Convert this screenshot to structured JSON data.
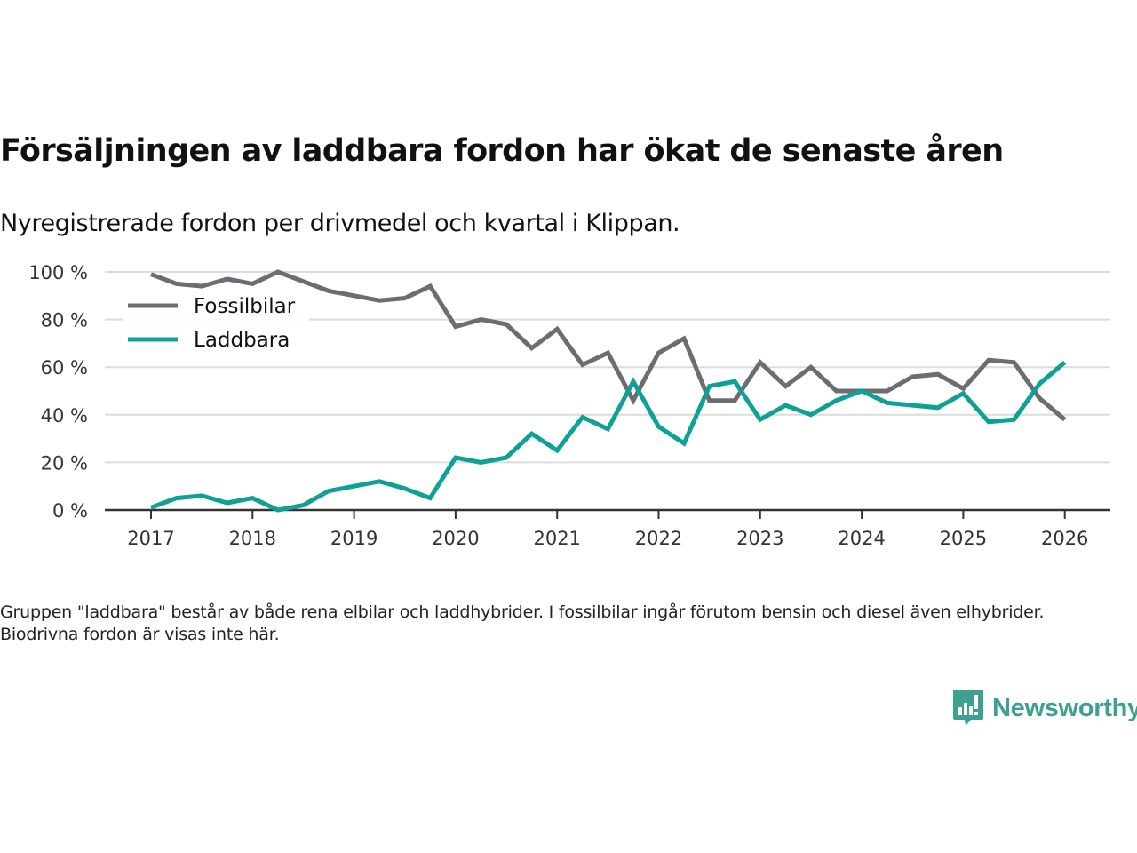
{
  "header": {
    "title": "Försäljningen av laddbara fordon har ökat de senaste åren",
    "subtitle": "Nyregistrerade fordon per drivmedel och kvartal i Klippan."
  },
  "footer": {
    "note": "Gruppen \"laddbara\" består av både rena elbilar och laddhybrider. I fossilbilar ingår förutom bensin och diesel även elhybrider. Biodrivna fordon är visas inte här.",
    "brand": "Newsworthy",
    "brand_icon": "bar-chart-speech-bubble-icon",
    "brand_color": "#3f9f93"
  },
  "chart_data": {
    "type": "line",
    "title": "Försäljningen av laddbara fordon har ökat de senaste åren",
    "subtitle": "Nyregistrerade fordon per drivmedel och kvartal i Klippan.",
    "xlabel": "",
    "ylabel": "",
    "x_ticks": [
      "2017",
      "2018",
      "2019",
      "2020",
      "2021",
      "2022",
      "2023",
      "2024",
      "2025",
      "2026"
    ],
    "y_ticks": [
      "0 %",
      "20 %",
      "40 %",
      "60 %",
      "80 %",
      "100 %"
    ],
    "xlim": [
      2016.55,
      2027.0
    ],
    "ylim": [
      0,
      100
    ],
    "grid": "horizontal",
    "legend_position": "top-left",
    "x": [
      2017.0,
      2017.25,
      2017.5,
      2017.75,
      2018.0,
      2018.25,
      2018.5,
      2018.75,
      2019.0,
      2019.25,
      2019.5,
      2019.75,
      2020.0,
      2020.25,
      2020.5,
      2020.75,
      2021.0,
      2021.25,
      2021.5,
      2021.75,
      2022.0,
      2022.25,
      2022.5,
      2022.75,
      2023.0,
      2023.25,
      2023.5,
      2023.75,
      2024.0,
      2024.25,
      2024.5,
      2024.75,
      2025.0,
      2025.25,
      2025.5,
      2025.75,
      2026.0
    ],
    "series": [
      {
        "name": "Fossilbilar",
        "color": "#6d6c70",
        "values": [
          99,
          95,
          94,
          97,
          95,
          100,
          96,
          92,
          90,
          88,
          89,
          94,
          77,
          80,
          78,
          68,
          76,
          61,
          66,
          46,
          66,
          72,
          46,
          46,
          62,
          52,
          60,
          50,
          50,
          50,
          56,
          57,
          51,
          63,
          62,
          47,
          38
        ]
      },
      {
        "name": "Laddbara",
        "color": "#0fa195",
        "values": [
          1,
          5,
          6,
          3,
          5,
          0,
          2,
          8,
          10,
          12,
          9,
          5,
          22,
          20,
          22,
          32,
          25,
          39,
          34,
          54,
          35,
          28,
          52,
          54,
          38,
          44,
          40,
          46,
          50,
          45,
          44,
          43,
          49,
          37,
          38,
          53,
          62
        ]
      }
    ]
  }
}
